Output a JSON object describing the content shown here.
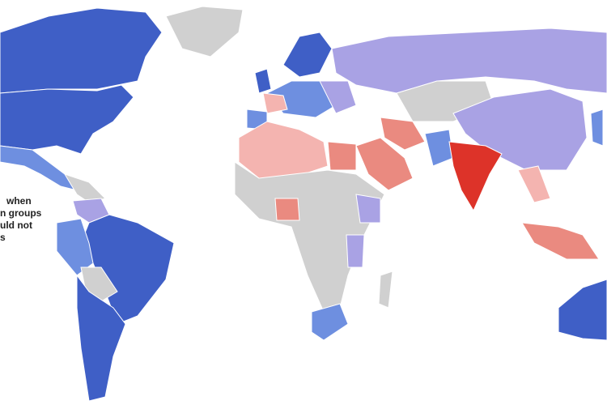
{
  "colors": {
    "dark_blue": "#3f5fc6",
    "mid_blue": "#6e8fe0",
    "lavender": "#a9a2e4",
    "gray": "#d0d0d0",
    "light_pink": "#f4b4b0",
    "salmon": "#ea8a80",
    "red": "#dd3329"
  },
  "caption_fragments": [
    "when",
    "n groups",
    "uld not",
    "s"
  ]
}
